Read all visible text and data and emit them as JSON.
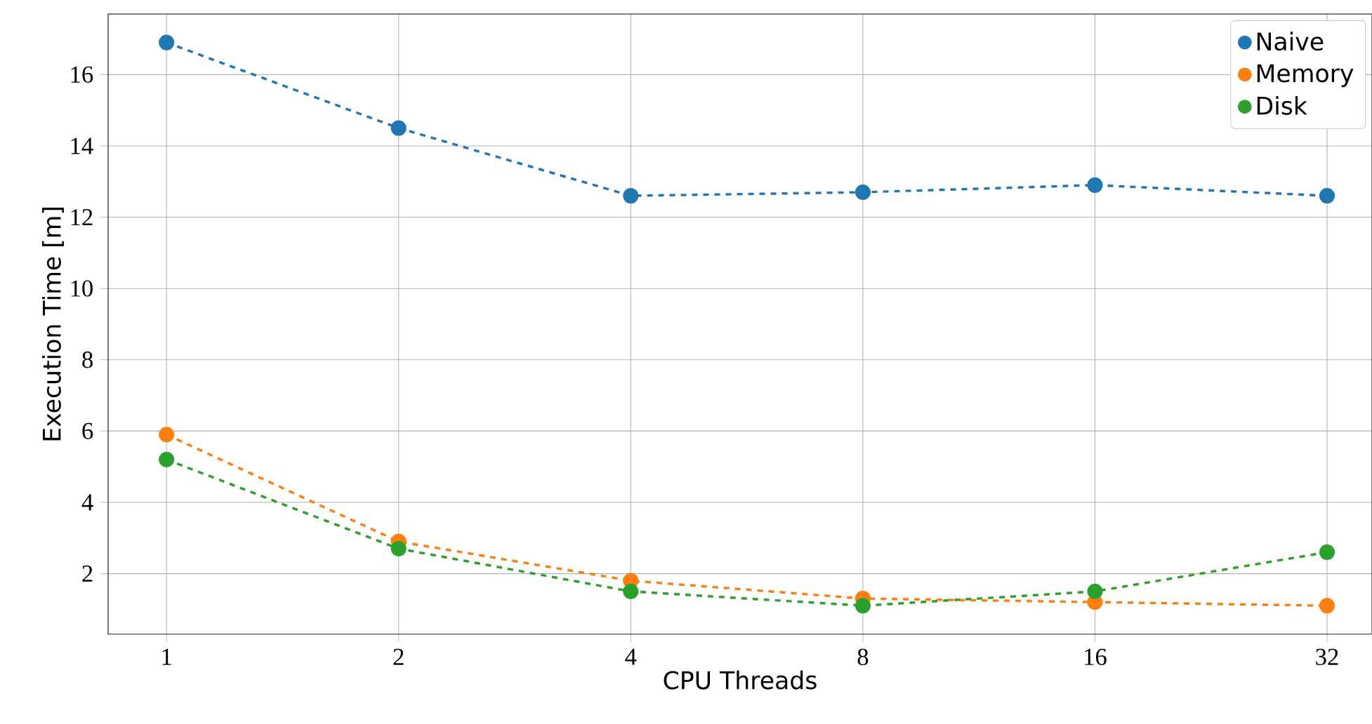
{
  "chart_data": {
    "type": "line",
    "xlabel": "CPU Threads",
    "ylabel": "Execution Time [m]",
    "x": [
      1,
      2,
      4,
      8,
      16,
      32
    ],
    "series": [
      {
        "name": "Naive",
        "color": "#1f77b4",
        "values": [
          16.9,
          14.5,
          12.6,
          12.7,
          12.9,
          12.6
        ]
      },
      {
        "name": "Memory",
        "color": "#ff7f0e",
        "values": [
          5.9,
          2.9,
          1.8,
          1.3,
          1.2,
          1.1
        ]
      },
      {
        "name": "Disk",
        "color": "#2ca02c",
        "values": [
          5.2,
          2.7,
          1.5,
          1.1,
          1.5,
          2.6
        ]
      }
    ],
    "log": "x",
    "xlim": [
      0.84,
      36.6
    ],
    "ylim": [
      0.3,
      17.7
    ],
    "xticks": [
      1,
      2,
      4,
      8,
      16,
      32
    ],
    "yticks": [
      2,
      4,
      6,
      8,
      10,
      12,
      14,
      16
    ],
    "grid": true,
    "legend": "top right",
    "marker": "circle",
    "line_style": "dashed"
  }
}
